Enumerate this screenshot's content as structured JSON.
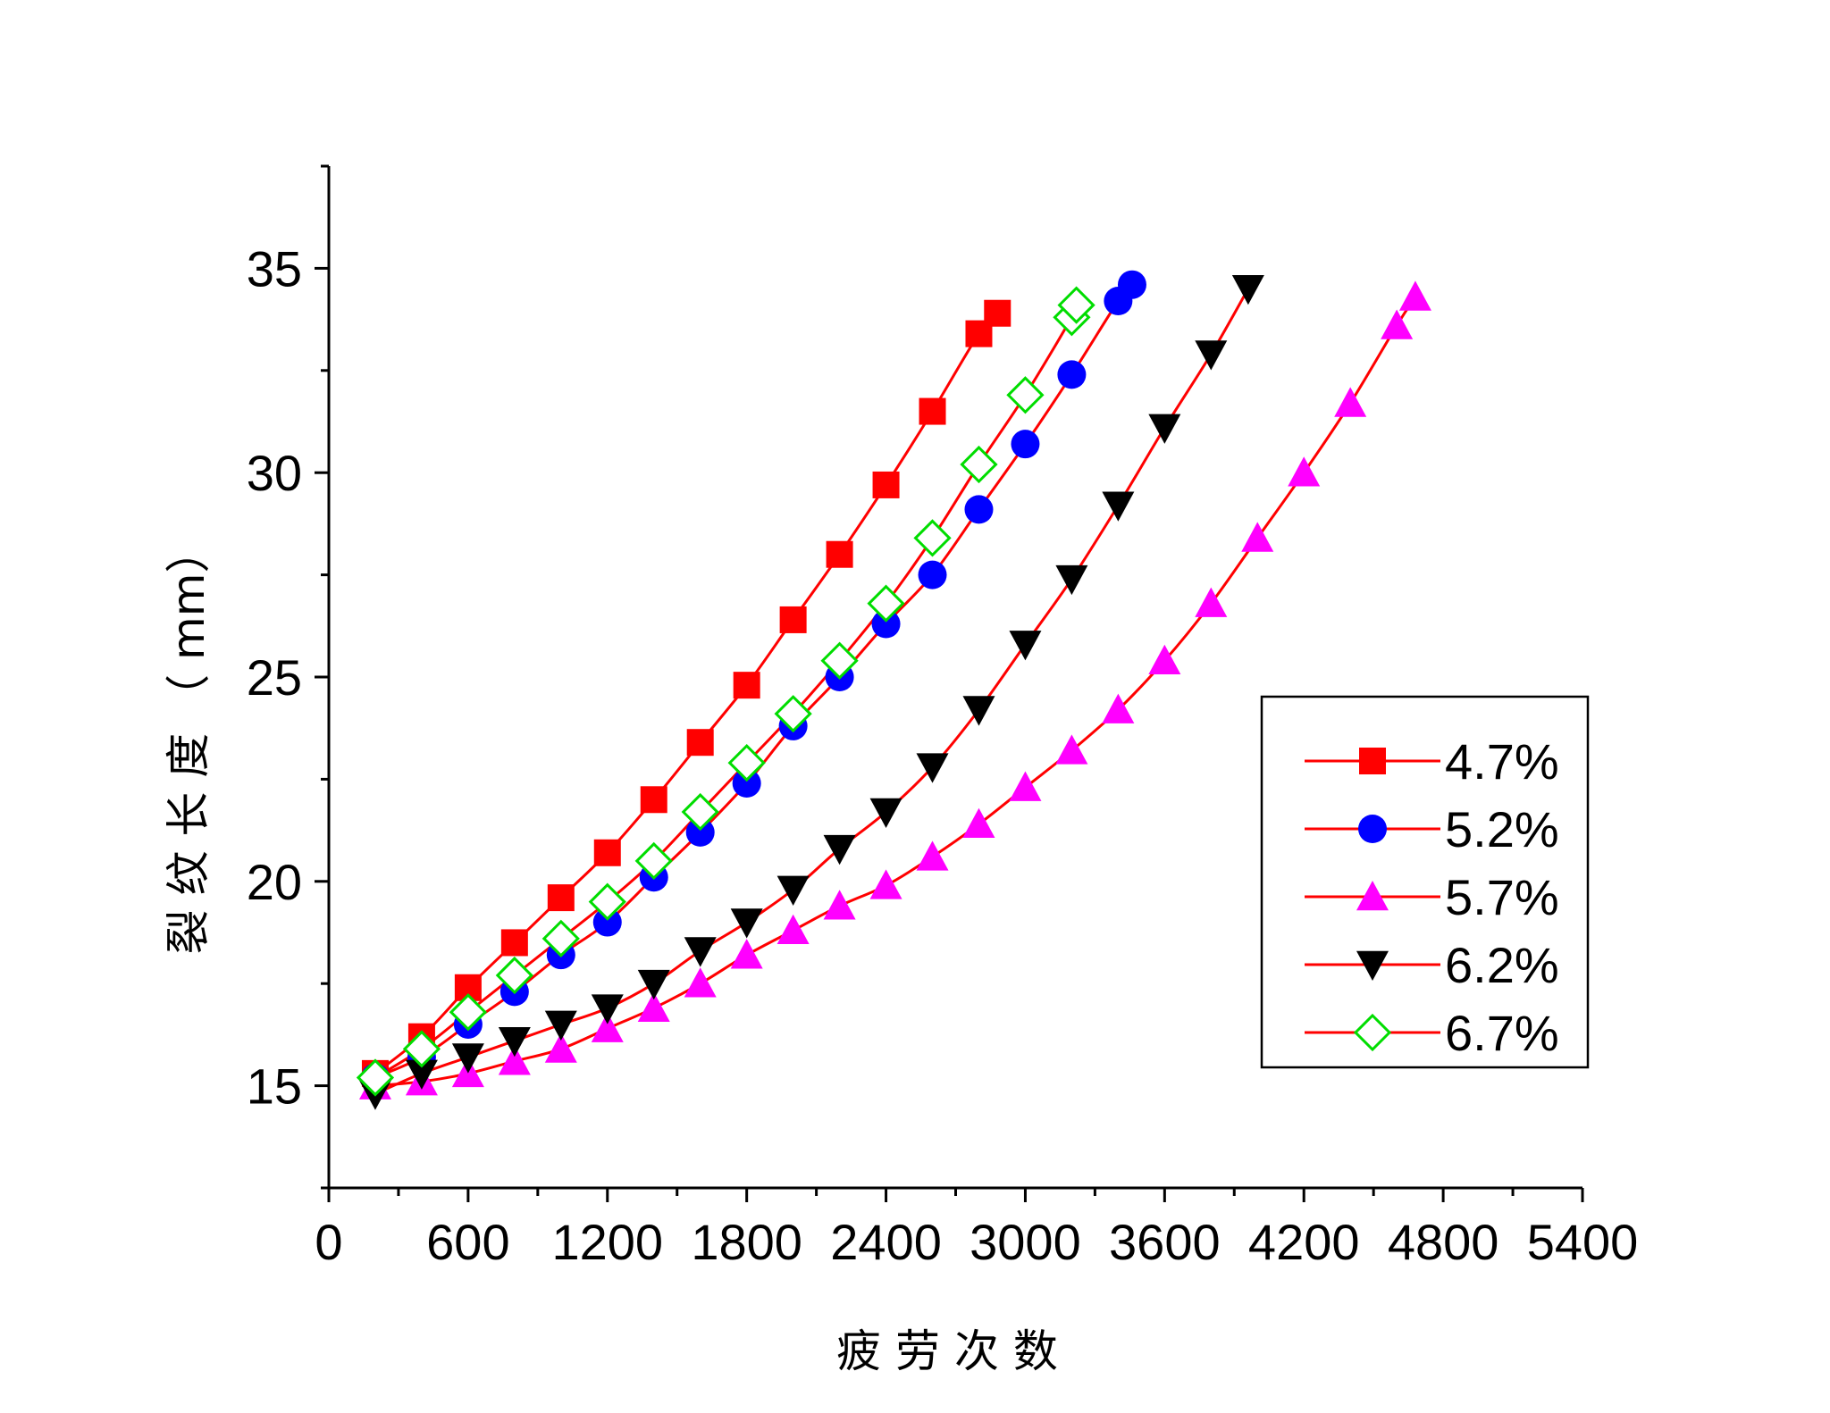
{
  "chart_data": {
    "type": "line",
    "title": "",
    "xlabel": "疲 劳 次 数",
    "ylabel": "裂 纹 长 度 （ mm）",
    "xlim": [
      0,
      5400
    ],
    "ylim": [
      12.5,
      37.5
    ],
    "xticks": [
      0,
      600,
      1200,
      1800,
      2400,
      3000,
      3600,
      4200,
      4800,
      5400
    ],
    "yticks": [
      15,
      20,
      25,
      30,
      35
    ],
    "grid": false,
    "legend_position": "right",
    "line_color": "#ff0000",
    "series": [
      {
        "name": "4.7%",
        "marker": "square",
        "color": "#ff0000",
        "x": [
          200,
          400,
          600,
          800,
          1000,
          1200,
          1400,
          1600,
          1800,
          2000,
          2200,
          2400,
          2600,
          2800,
          2880
        ],
        "y": [
          15.3,
          16.2,
          17.4,
          18.5,
          19.6,
          20.7,
          22.0,
          23.4,
          24.8,
          26.4,
          28.0,
          29.7,
          31.5,
          33.4,
          33.9
        ]
      },
      {
        "name": "5.2%",
        "marker": "circle",
        "color": "#0000ff",
        "x": [
          200,
          400,
          600,
          800,
          1000,
          1200,
          1400,
          1600,
          1800,
          2000,
          2200,
          2400,
          2600,
          2800,
          3000,
          3200,
          3400,
          3460
        ],
        "y": [
          15.2,
          15.7,
          16.5,
          17.3,
          18.2,
          19.0,
          20.1,
          21.2,
          22.4,
          23.8,
          25.0,
          26.3,
          27.5,
          29.1,
          30.7,
          32.4,
          34.2,
          34.6
        ]
      },
      {
        "name": "5.7%",
        "marker": "triangle-up",
        "color": "#ff00ff",
        "x": [
          200,
          400,
          600,
          800,
          1000,
          1200,
          1400,
          1600,
          1800,
          2000,
          2200,
          2400,
          2600,
          2800,
          3000,
          3200,
          3400,
          3600,
          3800,
          4000,
          4200,
          4400,
          4600,
          4680
        ],
        "y": [
          15.0,
          15.1,
          15.3,
          15.6,
          15.9,
          16.4,
          16.9,
          17.5,
          18.2,
          18.8,
          19.4,
          19.9,
          20.6,
          21.4,
          22.3,
          23.2,
          24.2,
          25.4,
          26.8,
          28.4,
          30.0,
          31.7,
          33.6,
          34.3
        ]
      },
      {
        "name": "6.2%",
        "marker": "triangle-down",
        "color": "#000000",
        "x": [
          200,
          400,
          600,
          800,
          1000,
          1200,
          1400,
          1600,
          1800,
          2000,
          2200,
          2400,
          2600,
          2800,
          3000,
          3200,
          3400,
          3600,
          3800,
          3960
        ],
        "y": [
          14.8,
          15.3,
          15.7,
          16.1,
          16.5,
          16.9,
          17.5,
          18.3,
          19.0,
          19.8,
          20.8,
          21.7,
          22.8,
          24.2,
          25.8,
          27.4,
          29.2,
          31.1,
          32.9,
          34.5
        ]
      },
      {
        "name": "6.7%",
        "marker": "diamond-open",
        "color": "#00dd00",
        "x": [
          200,
          400,
          600,
          800,
          1000,
          1200,
          1400,
          1600,
          1800,
          2000,
          2200,
          2400,
          2600,
          2800,
          3000,
          3200,
          3220
        ],
        "y": [
          15.2,
          15.9,
          16.8,
          17.7,
          18.6,
          19.5,
          20.5,
          21.7,
          22.9,
          24.1,
          25.4,
          26.8,
          28.4,
          30.2,
          31.9,
          33.8,
          34.1
        ]
      }
    ]
  }
}
